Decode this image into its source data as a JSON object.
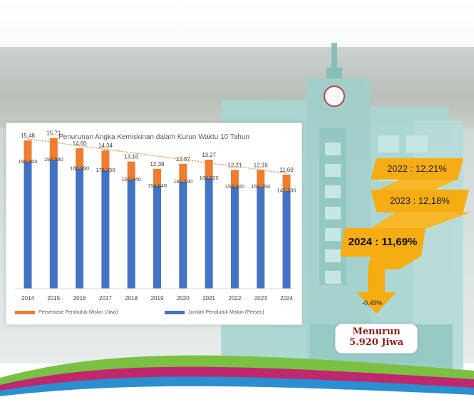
{
  "chart_data": {
    "type": "bar",
    "title": "Penurunan Angka Kemiskinan dalam Kurun Waktu 10 Tahun",
    "categories": [
      "2014",
      "2015",
      "2016",
      "2017",
      "2018",
      "2019",
      "2020",
      "2021",
      "2022",
      "2023",
      "2024"
    ],
    "series": [
      {
        "name": "Persentase Penduduk Miskin (Jiwa)",
        "color": "#ed7d31",
        "values": [
          15.48,
          15.71,
          14.6,
          14.34,
          13.16,
          12.38,
          12.87,
          13.27,
          12.21,
          12.18,
          11.69
        ],
        "labels": [
          "15,48",
          "15,71",
          "14,60",
          "14,34",
          "13,16",
          "12,38",
          "12,87",
          "13,27",
          "12,21",
          "12,18",
          "11,69"
        ]
      },
      {
        "name": "Jumlah Penduduk Miskin (Persen)",
        "color": "#4472c4",
        "values": [
          190900,
          193990,
          180990,
          178250,
          163940,
          154640,
          161100,
          166520,
          153400,
          153250,
          147330
        ],
        "labels": [
          "190,900",
          "193,990",
          "180,990",
          "178,250",
          "163,940",
          "154,640",
          "161,100",
          "166,520",
          "153,400",
          "153,250",
          "147,330"
        ]
      }
    ],
    "trendline": true,
    "ylim_count": [
      0,
      220000
    ],
    "ylim_percent": [
      0,
      20
    ],
    "grid": false,
    "legend": "bottom"
  },
  "callouts": {
    "y2022": "2022 : 12,21%",
    "y2023": "2023 : 12,18%",
    "y2024": "2024 : 11,69%",
    "change": "-0,49%",
    "decrease_line1": "Menurun",
    "decrease_line2": "5.920 Jiwa"
  },
  "colors": {
    "callout": "#f6ad14",
    "decrease_text": "#8b1a1a"
  }
}
